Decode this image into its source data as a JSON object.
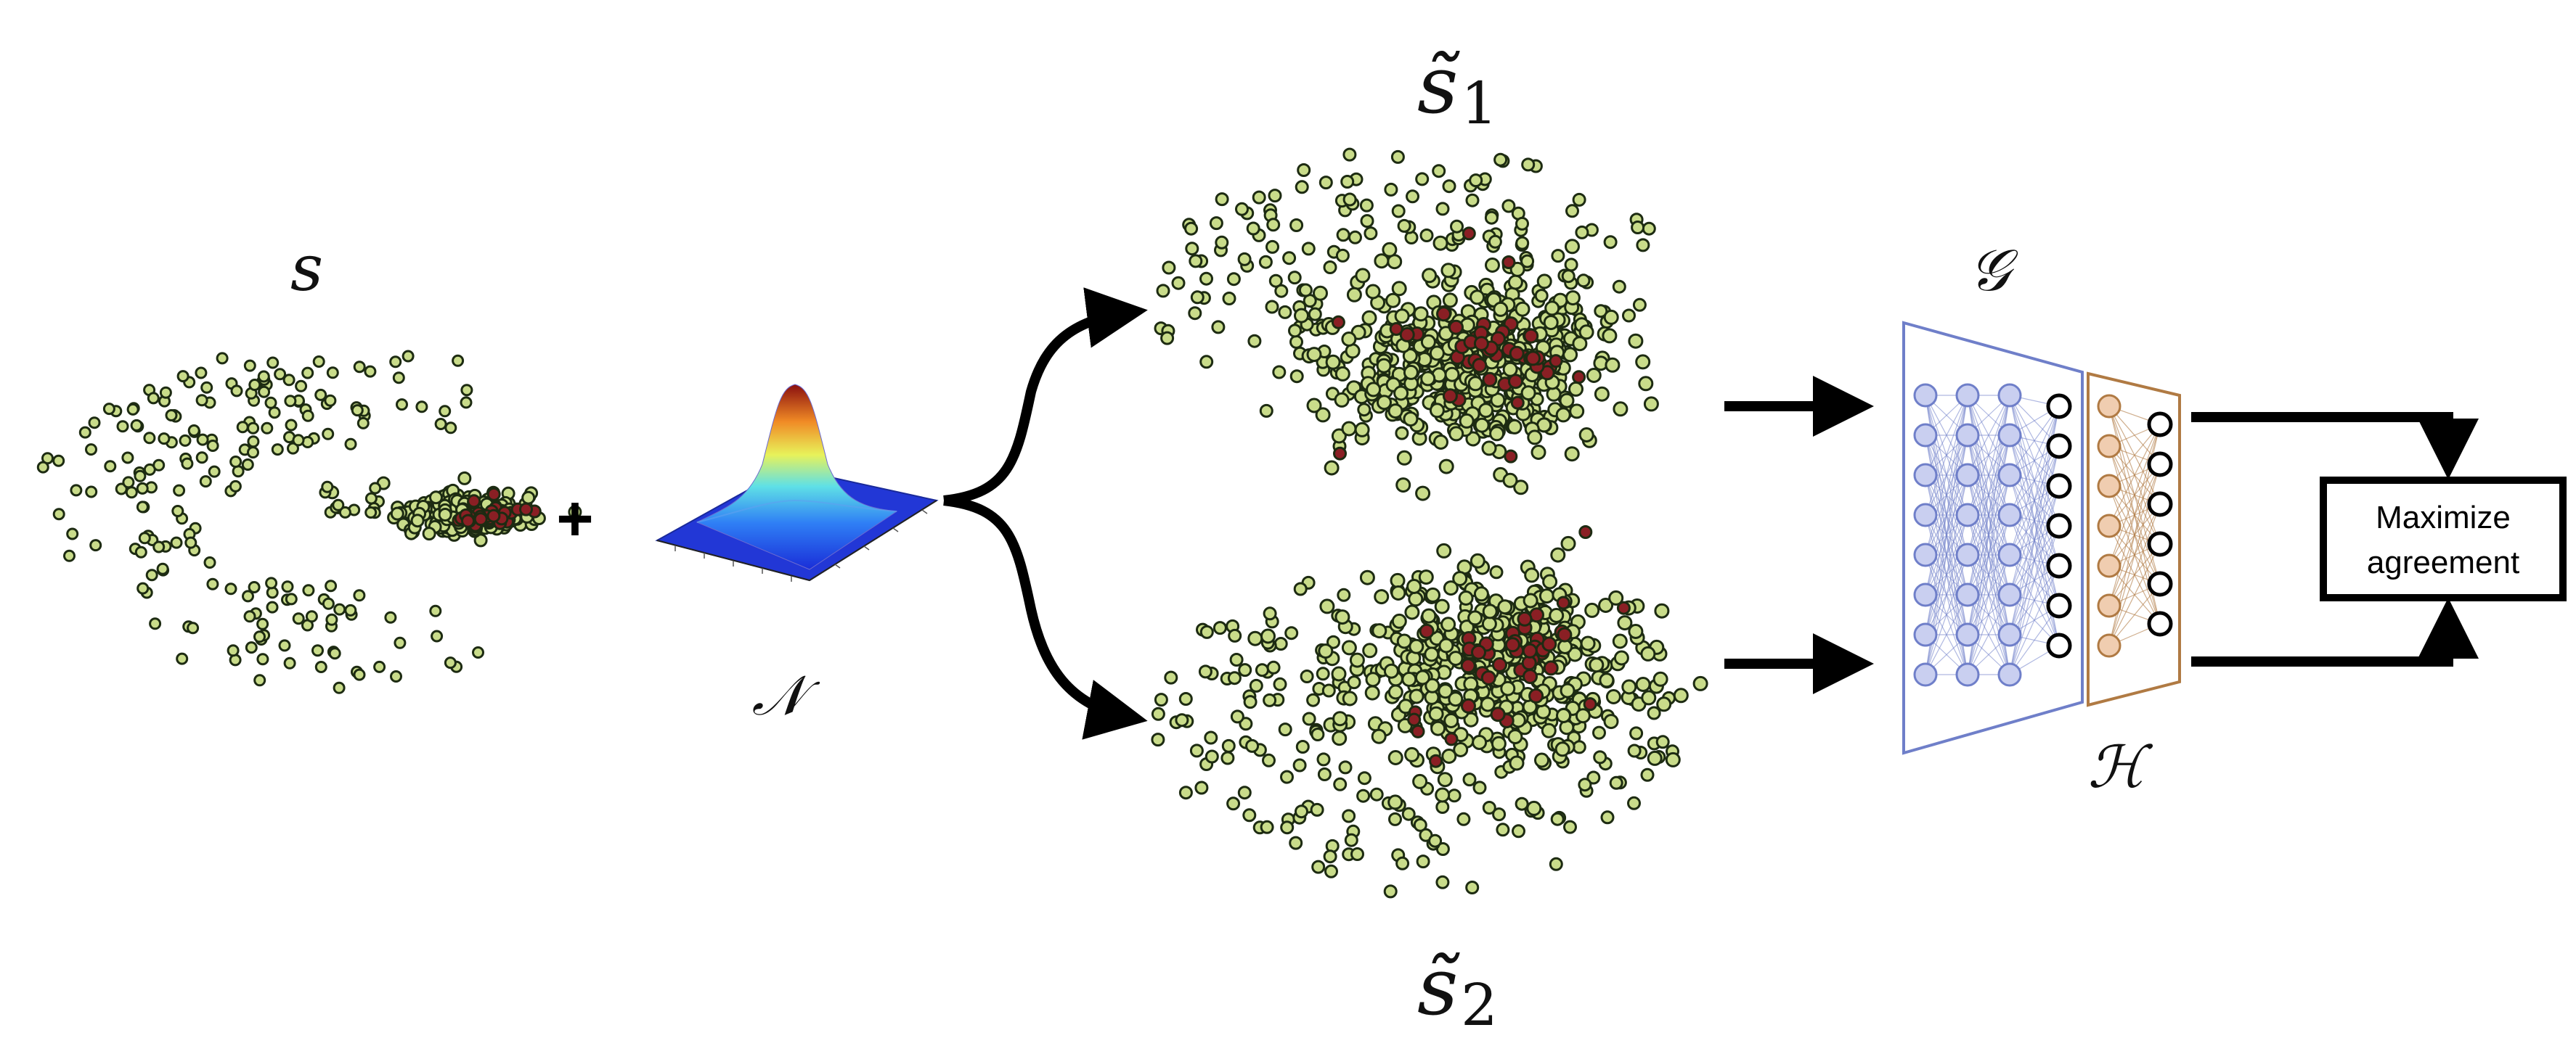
{
  "labels": {
    "s": "s",
    "plus": "+",
    "noise": "𝒩",
    "s1_tilde": "s̃",
    "s1_sub": "1",
    "s2_tilde": "s̃",
    "s2_sub": "2",
    "encoder": "𝒢",
    "projector": "ℋ",
    "agreement_line1": "Maximize",
    "agreement_line2": "agreement"
  },
  "colors": {
    "node_fill": "#c9dc8a",
    "node_stroke": "#1d2b12",
    "anomaly_fill": "#8a1f24",
    "encoder_stroke": "#6f7fc9",
    "encoder_node": "#c9cff0",
    "projector_stroke": "#b07a43",
    "projector_node": "#f0cdb0",
    "output_node": "#ffffff",
    "arrow": "#000000"
  },
  "icons": {
    "noise_surface": "gaussian-surface-icon"
  }
}
